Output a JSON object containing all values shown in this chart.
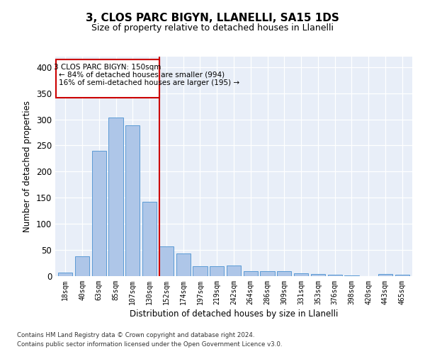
{
  "title1": "3, CLOS PARC BIGYN, LLANELLI, SA15 1DS",
  "title2": "Size of property relative to detached houses in Llanelli",
  "xlabel": "Distribution of detached houses by size in Llanelli",
  "ylabel": "Number of detached properties",
  "categories": [
    "18sqm",
    "40sqm",
    "63sqm",
    "85sqm",
    "107sqm",
    "130sqm",
    "152sqm",
    "174sqm",
    "197sqm",
    "219sqm",
    "242sqm",
    "264sqm",
    "286sqm",
    "309sqm",
    "331sqm",
    "353sqm",
    "376sqm",
    "398sqm",
    "420sqm",
    "443sqm",
    "465sqm"
  ],
  "values": [
    7,
    38,
    240,
    303,
    288,
    142,
    57,
    44,
    19,
    19,
    20,
    10,
    10,
    10,
    6,
    4,
    3,
    2,
    0,
    4,
    3
  ],
  "bar_color": "#aec6e8",
  "bar_edge_color": "#5b9bd5",
  "vline_color": "#cc0000",
  "annotation_title": "3 CLOS PARC BIGYN: 150sqm",
  "annotation_line2": "← 84% of detached houses are smaller (994)",
  "annotation_line3": "16% of semi-detached houses are larger (195) →",
  "annotation_box_color": "#cc0000",
  "ylim": [
    0,
    420
  ],
  "yticks": [
    0,
    50,
    100,
    150,
    200,
    250,
    300,
    350,
    400
  ],
  "bg_color": "#e8eef8",
  "footer1": "Contains HM Land Registry data © Crown copyright and database right 2024.",
  "footer2": "Contains public sector information licensed under the Open Government Licence v3.0."
}
